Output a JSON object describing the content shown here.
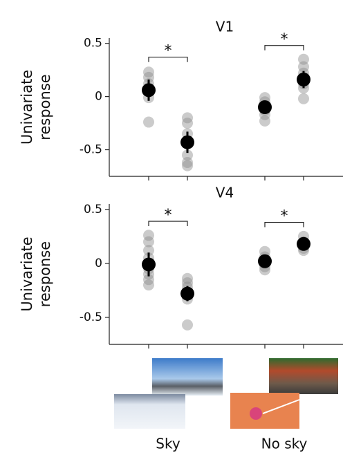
{
  "chart_data": [
    {
      "type": "dot",
      "title": "V1",
      "ylabel": [
        "Univariate",
        "response"
      ],
      "categories": [
        null,
        null,
        null,
        null
      ],
      "values": [
        0.06,
        -0.43,
        -0.1,
        0.16
      ],
      "errors": [
        0.1,
        0.1,
        0.05,
        0.08
      ],
      "points": [
        [
          0.23,
          0.18,
          0.12,
          0.08,
          0.05,
          -0.01,
          -0.24
        ],
        [
          -0.2,
          -0.25,
          -0.35,
          -0.42,
          -0.55,
          -0.62,
          -0.65
        ],
        [
          -0.01,
          -0.05,
          -0.1,
          -0.13,
          -0.17,
          -0.23
        ],
        [
          0.35,
          0.28,
          0.22,
          0.18,
          0.12,
          0.08,
          -0.02
        ]
      ],
      "color": "#000000",
      "point_color": "#8c8c8c",
      "ylim": [
        -0.75,
        0.55
      ],
      "yticks": [
        -0.5,
        0,
        0.5
      ],
      "significance": [
        {
          "label": "*",
          "y": 0.37
        },
        {
          "label": "*",
          "y": 0.48
        }
      ]
    },
    {
      "type": "dot",
      "title": "V4",
      "ylabel": [
        "Univariate",
        "response"
      ],
      "categories": [
        null,
        null,
        null,
        null
      ],
      "values": [
        -0.01,
        -0.28,
        0.02,
        0.18
      ],
      "errors": [
        0.11,
        0.07,
        0.04,
        0.04
      ],
      "points": [
        [
          0.26,
          0.2,
          0.12,
          0.05,
          -0.05,
          -0.1,
          -0.15,
          -0.2
        ],
        [
          -0.14,
          -0.18,
          -0.22,
          -0.28,
          -0.33,
          -0.57
        ],
        [
          0.11,
          0.06,
          0.0,
          -0.03,
          -0.06
        ],
        [
          0.25,
          0.2,
          0.17,
          0.14,
          0.12
        ]
      ],
      "color": "#000000",
      "point_color": "#8c8c8c",
      "ylim": [
        -0.75,
        0.55
      ],
      "yticks": [
        -0.5,
        0,
        0.5
      ],
      "significance": [
        {
          "label": "*",
          "y": 0.39
        },
        {
          "label": "*",
          "y": 0.38
        }
      ],
      "x_groups": [
        "Sky",
        "No sky"
      ]
    }
  ]
}
